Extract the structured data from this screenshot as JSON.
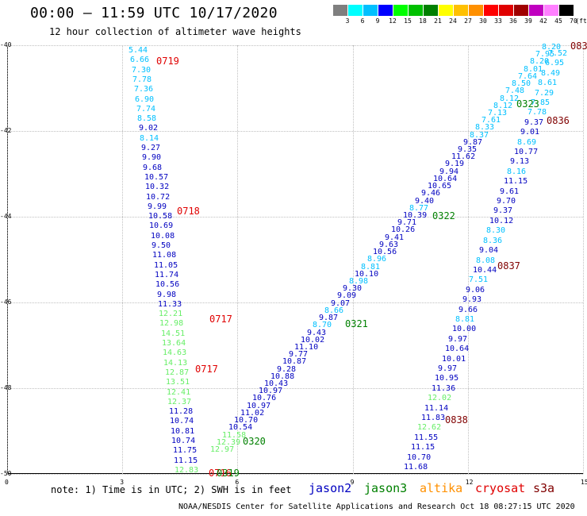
{
  "header": {
    "title": "00:00 – 11:59 UTC 10/17/2020",
    "subtitle": "12 hour collection of altimeter wave heights"
  },
  "scale": {
    "labels": [
      "3",
      "6",
      "9",
      "12",
      "15",
      "18",
      "21",
      "24",
      "27",
      "30",
      "33",
      "36",
      "39",
      "42",
      "45",
      "70"
    ],
    "unit": "(ft)",
    "colors": [
      "#7f7f7f",
      "#00ffff",
      "#00c0ff",
      "#0000ff",
      "#00ff00",
      "#00c000",
      "#008000",
      "#ffff00",
      "#ffc000",
      "#ff9000",
      "#ff0000",
      "#e00000",
      "#a00000",
      "#c000c0",
      "#ff80ff",
      "#000000"
    ]
  },
  "axes": {
    "y_labels": [
      "-40",
      "-42",
      "-44",
      "-46",
      "-48",
      "-50"
    ],
    "x_labels": [
      "0",
      "3",
      "6",
      "9",
      "12",
      "15"
    ]
  },
  "tracks": [
    {
      "name": "t0719",
      "time": "0719",
      "time_color": "#e00000",
      "points": [
        [
          "5.44",
          "#00c0ff"
        ],
        [
          "6.66",
          "#00c0ff"
        ],
        [
          "7.30",
          "#00c0ff"
        ],
        [
          "7.78",
          "#00c0ff"
        ],
        [
          "7.36",
          "#00c0ff"
        ],
        [
          "6.90",
          "#00c0ff"
        ],
        [
          "7.74",
          "#00c0ff"
        ],
        [
          "8.58",
          "#00c0ff"
        ],
        [
          "9.02",
          "#0000c0"
        ],
        [
          "8.14",
          "#00c0ff"
        ],
        [
          "9.27",
          "#0000c0"
        ],
        [
          "9.90",
          "#0000c0"
        ],
        [
          "9.68",
          "#0000c0"
        ],
        [
          "10.57",
          "#0000c0"
        ],
        [
          "10.32",
          "#0000c0"
        ],
        [
          "10.72",
          "#0000c0"
        ],
        [
          "9.99",
          "#0000c0"
        ],
        [
          "10.58",
          "#0000c0"
        ],
        [
          "10.69",
          "#0000c0"
        ],
        [
          "10.08",
          "#0000c0"
        ],
        [
          "9.50",
          "#0000c0"
        ],
        [
          "11.08",
          "#0000c0"
        ],
        [
          "11.05",
          "#0000c0"
        ],
        [
          "11.74",
          "#0000c0"
        ],
        [
          "10.56",
          "#0000c0"
        ],
        [
          "9.98",
          "#0000c0"
        ],
        [
          "11.33",
          "#0000c0"
        ],
        [
          "12.21",
          "#66ee66"
        ],
        [
          "12.98",
          "#66ee66"
        ],
        [
          "14.51",
          "#66ee66"
        ],
        [
          "13.64",
          "#66ee66"
        ],
        [
          "14.63",
          "#66ee66"
        ],
        [
          "14.13",
          "#66ee66"
        ],
        [
          "12.87",
          "#66ee66"
        ],
        [
          "13.51",
          "#66ee66"
        ],
        [
          "12.41",
          "#66ee66"
        ],
        [
          "12.37",
          "#66ee66"
        ],
        [
          "11.28",
          "#0000c0"
        ],
        [
          "10.74",
          "#0000c0"
        ],
        [
          "10.81",
          "#0000c0"
        ],
        [
          "10.74",
          "#0000c0"
        ],
        [
          "11.75",
          "#0000c0"
        ],
        [
          "11.15",
          "#0000c0"
        ],
        [
          "12.83",
          "#66ee66"
        ]
      ]
    },
    {
      "name": "t0321",
      "time": "0321",
      "time_color": "#008000",
      "points": [
        [
          "12.97",
          "#66ee66"
        ],
        [
          "12.39",
          "#66ee66"
        ],
        [
          "11.58",
          "#66ee66"
        ],
        [
          "10.54",
          "#0000c0"
        ],
        [
          "10.70",
          "#0000c0"
        ],
        [
          "11.02",
          "#0000c0"
        ],
        [
          "10.97",
          "#0000c0"
        ],
        [
          "10.76",
          "#0000c0"
        ],
        [
          "10.97",
          "#0000c0"
        ],
        [
          "10.43",
          "#0000c0"
        ],
        [
          "10.88",
          "#0000c0"
        ],
        [
          "9.28",
          "#0000c0"
        ],
        [
          "10.87",
          "#0000c0"
        ],
        [
          "9.77",
          "#0000c0"
        ],
        [
          "11.10",
          "#0000c0"
        ],
        [
          "10.02",
          "#0000c0"
        ],
        [
          "9.43",
          "#0000c0"
        ],
        [
          "8.70",
          "#00c0ff"
        ],
        [
          "9.87",
          "#0000c0"
        ],
        [
          "8.66",
          "#00c0ff"
        ],
        [
          "9.07",
          "#0000c0"
        ],
        [
          "9.09",
          "#0000c0"
        ],
        [
          "9.30",
          "#0000c0"
        ],
        [
          "8.98",
          "#00c0ff"
        ],
        [
          "10.10",
          "#0000c0"
        ],
        [
          "8.81",
          "#00c0ff"
        ],
        [
          "8.96",
          "#00c0ff"
        ],
        [
          "10.56",
          "#0000c0"
        ],
        [
          "9.63",
          "#0000c0"
        ],
        [
          "9.41",
          "#0000c0"
        ],
        [
          "10.26",
          "#0000c0"
        ],
        [
          "9.71",
          "#0000c0"
        ],
        [
          "10.39",
          "#0000c0"
        ],
        [
          "8.77",
          "#00c0ff"
        ],
        [
          "9.40",
          "#0000c0"
        ],
        [
          "9.46",
          "#0000c0"
        ],
        [
          "10.65",
          "#0000c0"
        ],
        [
          "10.64",
          "#0000c0"
        ],
        [
          "9.94",
          "#0000c0"
        ],
        [
          "9.19",
          "#0000c0"
        ],
        [
          "11.62",
          "#0000c0"
        ],
        [
          "9.35",
          "#0000c0"
        ],
        [
          "9.87",
          "#0000c0"
        ],
        [
          "8.37",
          "#00c0ff"
        ],
        [
          "8.33",
          "#00c0ff"
        ],
        [
          "7.61",
          "#00c0ff"
        ],
        [
          "7.13",
          "#00c0ff"
        ],
        [
          "8.12",
          "#00c0ff"
        ],
        [
          "8.12",
          "#00c0ff"
        ],
        [
          "7.48",
          "#00c0ff"
        ],
        [
          "8.50",
          "#00c0ff"
        ],
        [
          "7.64",
          "#00c0ff"
        ],
        [
          "8.01",
          "#00c0ff"
        ],
        [
          "8.20",
          "#00c0ff"
        ],
        [
          "7.95",
          "#00c0ff"
        ],
        [
          "8.20",
          "#00c0ff"
        ]
      ]
    },
    {
      "name": "t0837",
      "time": "0837",
      "time_color": "#800000",
      "points": [
        [
          "7.52",
          "#00c0ff"
        ],
        [
          "6.95",
          "#00c0ff"
        ],
        [
          "8.49",
          "#00c0ff"
        ],
        [
          "8.61",
          "#00c0ff"
        ],
        [
          "7.29",
          "#00c0ff"
        ],
        [
          "7.85",
          "#00c0ff"
        ],
        [
          "7.78",
          "#00c0ff"
        ],
        [
          "9.37",
          "#0000c0"
        ],
        [
          "9.01",
          "#0000c0"
        ],
        [
          "8.69",
          "#00c0ff"
        ],
        [
          "10.77",
          "#0000c0"
        ],
        [
          "9.13",
          "#0000c0"
        ],
        [
          "8.16",
          "#00c0ff"
        ],
        [
          "11.15",
          "#0000c0"
        ],
        [
          "9.61",
          "#0000c0"
        ],
        [
          "9.70",
          "#0000c0"
        ],
        [
          "9.37",
          "#0000c0"
        ],
        [
          "10.12",
          "#0000c0"
        ],
        [
          "8.30",
          "#00c0ff"
        ],
        [
          "8.36",
          "#00c0ff"
        ],
        [
          "9.04",
          "#0000c0"
        ],
        [
          "8.08",
          "#00c0ff"
        ],
        [
          "10.44",
          "#0000c0"
        ],
        [
          "7.51",
          "#00c0ff"
        ],
        [
          "9.06",
          "#0000c0"
        ],
        [
          "9.93",
          "#0000c0"
        ],
        [
          "9.66",
          "#0000c0"
        ],
        [
          "8.81",
          "#00c0ff"
        ],
        [
          "10.00",
          "#0000c0"
        ],
        [
          "9.97",
          "#0000c0"
        ],
        [
          "10.64",
          "#0000c0"
        ],
        [
          "10.01",
          "#0000c0"
        ],
        [
          "9.97",
          "#0000c0"
        ],
        [
          "10.95",
          "#0000c0"
        ],
        [
          "11.36",
          "#0000c0"
        ],
        [
          "12.02",
          "#66ee66"
        ],
        [
          "11.14",
          "#0000c0"
        ],
        [
          "11.83",
          "#0000c0"
        ],
        [
          "12.62",
          "#66ee66"
        ],
        [
          "11.55",
          "#0000c0"
        ],
        [
          "11.15",
          "#0000c0"
        ],
        [
          "10.70",
          "#0000c0"
        ],
        [
          "11.68",
          "#0000c0"
        ]
      ]
    }
  ],
  "time_labels": [
    {
      "text": "0719",
      "color": "#e00000"
    },
    {
      "text": "0718",
      "color": "#e00000"
    },
    {
      "text": "0717",
      "color": "#e00000"
    },
    {
      "text": "0717",
      "color": "#e00000"
    },
    {
      "text": "0716",
      "color": "#e00000"
    },
    {
      "text": "0319",
      "color": "#008000"
    },
    {
      "text": "0320",
      "color": "#008000"
    },
    {
      "text": "0321",
      "color": "#008000"
    },
    {
      "text": "0322",
      "color": "#008000"
    },
    {
      "text": "0323",
      "color": "#008000"
    },
    {
      "text": "0836",
      "color": "#800000"
    },
    {
      "text": "0837",
      "color": "#800000"
    },
    {
      "text": "0838",
      "color": "#800000"
    },
    {
      "text": "083",
      "color": "#800000"
    }
  ],
  "footer": {
    "note": "note: 1) Time is in UTC; 2) SWH is in feet",
    "satellites": [
      {
        "name": "jason2",
        "color": "#0000c0"
      },
      {
        "name": "jason3",
        "color": "#008000"
      },
      {
        "name": "altika",
        "color": "#ff9000"
      },
      {
        "name": "cryosat",
        "color": "#e00000"
      },
      {
        "name": "s3a",
        "color": "#800000"
      }
    ],
    "credit": "NOAA/NESDIS Center for Satellite Applications and Research   Oct 18 08:27:15 UTC 2020"
  }
}
